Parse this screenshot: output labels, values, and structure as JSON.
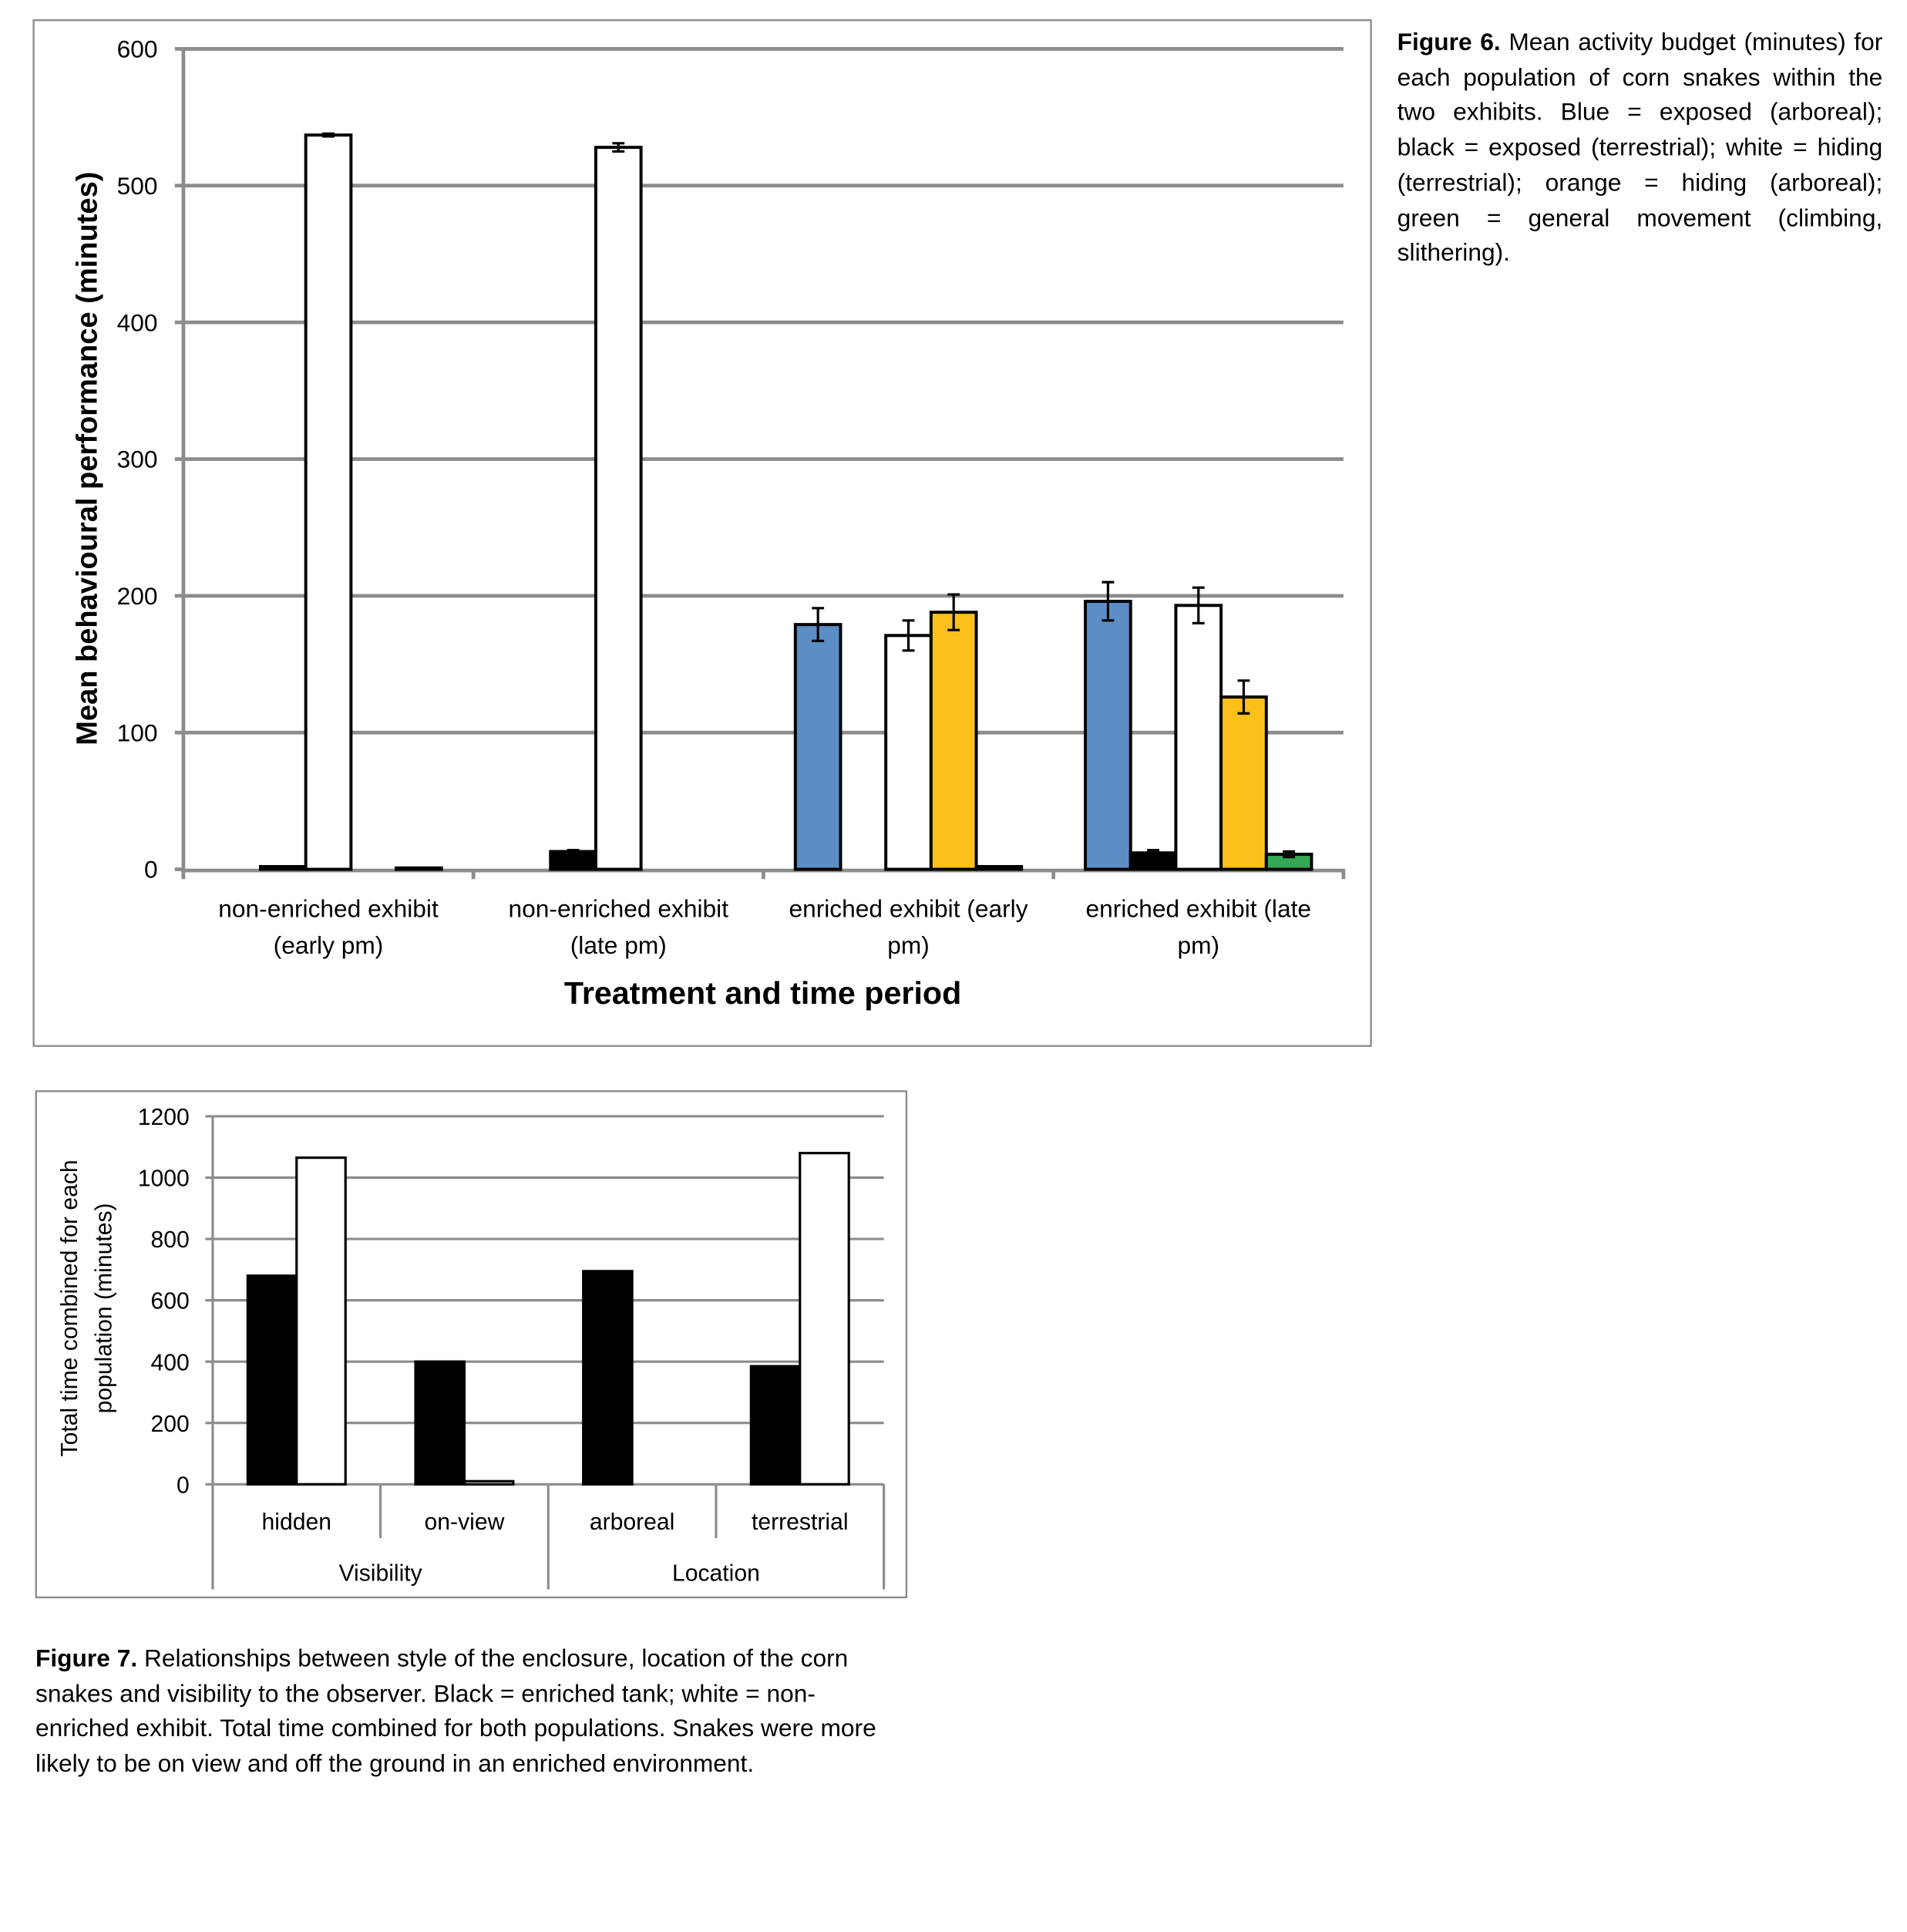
{
  "figure6": {
    "caption_label": "Figure 6.",
    "caption_text": " Mean activity budget (minutes) for each population of corn snakes within the two exhibits. Blue = exposed (arboreal); black = exposed (terrestrial); white = hiding (terrestrial); orange = hiding (arboreal); green = general movement (climbing, slithering)."
  },
  "figure7": {
    "caption_label": "Figure 7.",
    "caption_text": " Relationships between style of the enclosure, location of the corn snakes and visibility to the observer. Black = enriched tank; white = non-enriched exhibit. Total time combined for both populations. Snakes were more likely to be on view and off the ground in an enriched environment."
  },
  "chart_data": [
    {
      "type": "bar",
      "xlabel": "Treatment and time period",
      "ylabel": "Mean behavioural performance (minutes)",
      "ylim": [
        0,
        600
      ],
      "yticks": [
        "0",
        "100",
        "200",
        "300",
        "400",
        "500",
        "600"
      ],
      "grid": true,
      "categories": [
        [
          "non-enriched exhibit",
          "(early pm)"
        ],
        [
          "non-enriched exhibit",
          "(late pm)"
        ],
        [
          "enriched exhibit (early",
          "pm)"
        ],
        [
          "enriched exhibit (late",
          "pm)"
        ]
      ],
      "series": [
        {
          "color": "#5B8EC6",
          "values": [
            0,
            0,
            179,
            196
          ],
          "errors": [
            0,
            0,
            12,
            14
          ]
        },
        {
          "color": "#000000",
          "values": [
            2,
            13,
            0,
            12
          ],
          "errors": [
            0,
            1,
            0,
            2
          ]
        },
        {
          "color": "#FFFFFF",
          "values": [
            537,
            528,
            171,
            193
          ],
          "errors": [
            1,
            3,
            11,
            13
          ]
        },
        {
          "color": "#FBC01A",
          "values": [
            0,
            0,
            188,
            126
          ],
          "errors": [
            0,
            0,
            13,
            12
          ]
        },
        {
          "color": "#33A852",
          "values": [
            1,
            0,
            2,
            11
          ],
          "errors": [
            0,
            0,
            0,
            2
          ]
        }
      ]
    },
    {
      "type": "bar",
      "ylabel": [
        "Total time combined for each",
        "population (minutes)"
      ],
      "ylim": [
        0,
        1200
      ],
      "yticks": [
        "0",
        "200",
        "400",
        "600",
        "800",
        "1000",
        "1200"
      ],
      "grid": true,
      "categories": [
        "hidden",
        "on-view",
        "arboreal",
        "terrestrial"
      ],
      "groups": [
        "Visibility",
        "Location"
      ],
      "series": [
        {
          "color": "#000000",
          "values": [
            680,
            400,
            695,
            385
          ]
        },
        {
          "color": "#FFFFFF",
          "values": [
            1065,
            10,
            0,
            1080
          ]
        }
      ]
    }
  ]
}
